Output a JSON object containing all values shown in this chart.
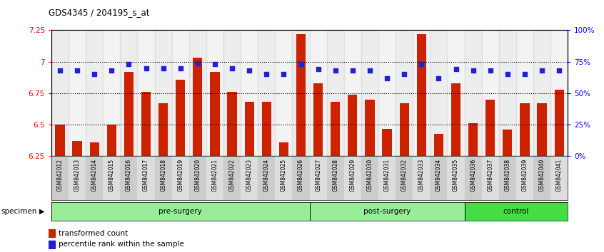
{
  "title": "GDS4345 / 204195_s_at",
  "samples": [
    "GSM842012",
    "GSM842013",
    "GSM842014",
    "GSM842015",
    "GSM842016",
    "GSM842017",
    "GSM842018",
    "GSM842019",
    "GSM842020",
    "GSM842021",
    "GSM842022",
    "GSM842023",
    "GSM842024",
    "GSM842025",
    "GSM842026",
    "GSM842027",
    "GSM842028",
    "GSM842029",
    "GSM842030",
    "GSM842031",
    "GSM842032",
    "GSM842033",
    "GSM842034",
    "GSM842035",
    "GSM842036",
    "GSM842037",
    "GSM842038",
    "GSM842039",
    "GSM842040",
    "GSM842041"
  ],
  "bar_values": [
    6.5,
    6.37,
    6.36,
    6.5,
    6.92,
    6.76,
    6.67,
    6.86,
    7.03,
    6.92,
    6.76,
    6.68,
    6.68,
    6.36,
    7.22,
    6.83,
    6.68,
    6.74,
    6.7,
    6.47,
    6.67,
    7.22,
    6.43,
    6.83,
    6.51,
    6.7,
    6.46,
    6.67,
    6.67,
    6.78
  ],
  "percentile_values": [
    68,
    68,
    65,
    68,
    73,
    70,
    70,
    70,
    74,
    73,
    70,
    68,
    65,
    65,
    73,
    69,
    68,
    68,
    68,
    62,
    65,
    73,
    62,
    69,
    68,
    68,
    65,
    65,
    68,
    68
  ],
  "groups": [
    {
      "label": "pre-surgery",
      "start": 0,
      "end": 15,
      "color": "#98EE98"
    },
    {
      "label": "post-surgery",
      "start": 15,
      "end": 24,
      "color": "#98EE98"
    },
    {
      "label": "control",
      "start": 24,
      "end": 30,
      "color": "#44DD44"
    }
  ],
  "ylim_left": [
    6.25,
    7.25
  ],
  "ylim_right": [
    0,
    100
  ],
  "yticks_left": [
    6.25,
    6.5,
    6.75,
    7.0,
    7.25
  ],
  "ytick_labels_left": [
    "6.25",
    "6.5",
    "6.75",
    "7",
    "7.25"
  ],
  "yticks_right": [
    0,
    25,
    50,
    75,
    100
  ],
  "ytick_labels_right": [
    "0%",
    "25%",
    "50%",
    "75%",
    "100%"
  ],
  "hlines": [
    6.5,
    6.75,
    7.0
  ],
  "bar_color": "#CC2200",
  "percentile_color": "#2222CC",
  "legend_bar": "transformed count",
  "legend_pct": "percentile rank within the sample"
}
